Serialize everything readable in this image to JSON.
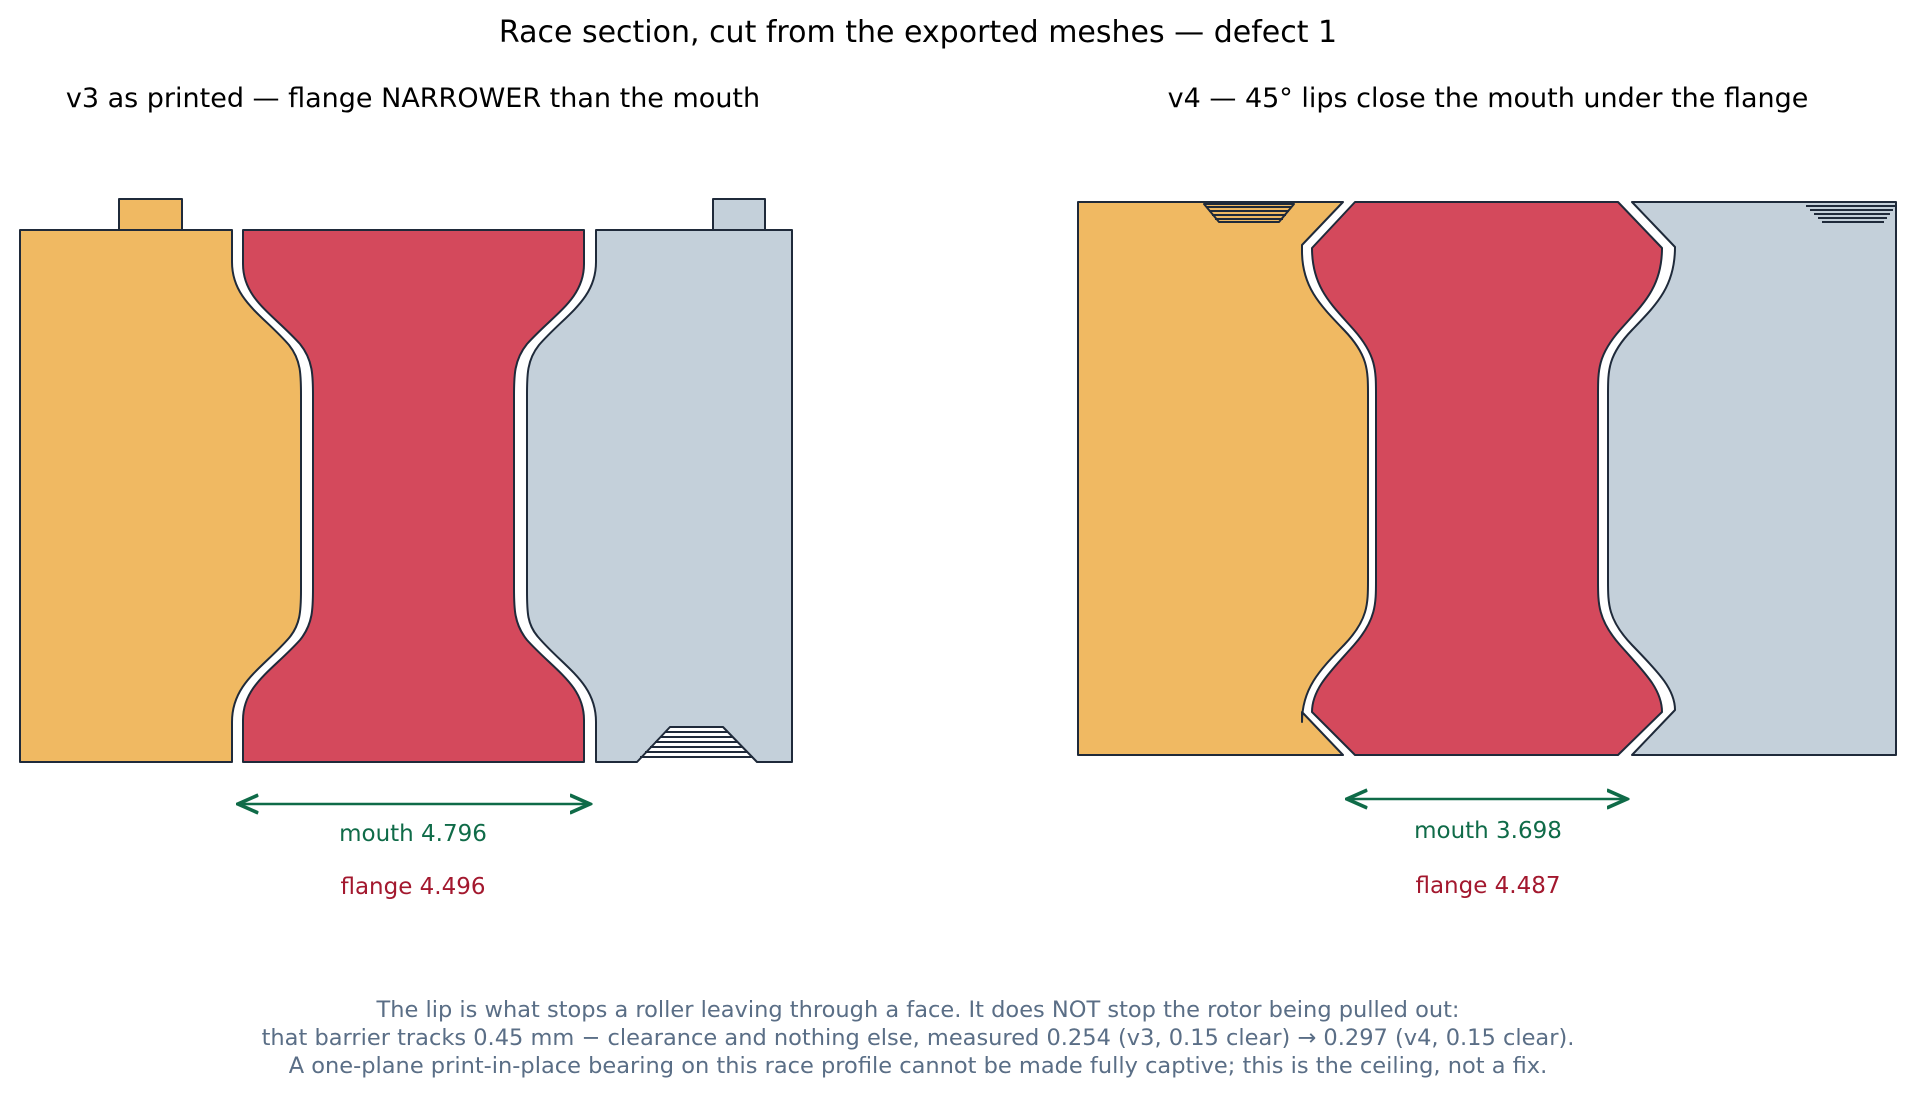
{
  "title": "Race section, cut from the exported meshes — defect 1",
  "panels": [
    {
      "subtitle": "v3 as printed — flange NARROWER than the mouth",
      "mouth_label": "mouth 4.796",
      "flange_label": "flange 4.496"
    },
    {
      "subtitle": "v4 — 45° lips close the mouth under the flange",
      "mouth_label": "mouth 3.698",
      "flange_label": "flange 4.487"
    }
  ],
  "note_lines": [
    "The lip is what stops a roller leaving through a face. It does NOT stop the rotor being pulled out:",
    "that barrier tracks 0.45 mm − clearance and nothing else, measured 0.254 (v3, 0.15 clear) → 0.297 (v4, 0.15 clear).",
    "A one-plane print-in-place bearing on this race profile cannot be made fully captive; this is the ceiling, not a fix."
  ],
  "colors": {
    "inner_race": "#f0b962",
    "roller": "#d4495c",
    "outer_race": "#c4d0da",
    "outline": "#1f2a3a",
    "mouth": "#0f6b48",
    "flange": "#a3182e",
    "note": "#5a6e86"
  }
}
